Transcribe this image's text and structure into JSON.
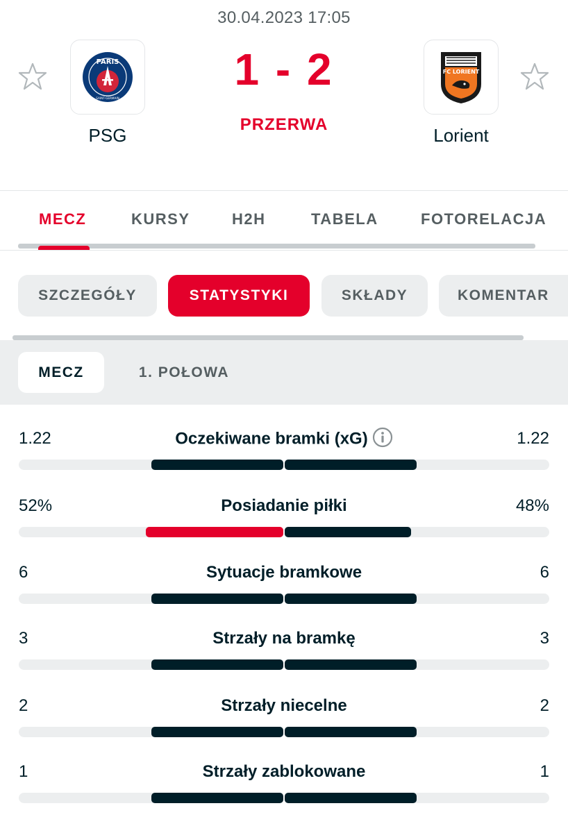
{
  "match": {
    "datetime": "30.04.2023 17:05",
    "home_team": "PSG",
    "away_team": "Lorient",
    "score": "1 - 2",
    "status": "PRZERWA",
    "home_logo_icon": "psg-crest-icon",
    "away_logo_icon": "fc-lorient-crest-icon",
    "home_logo_text": {
      "top": "PARIS",
      "bottom": "SAINT-GERMAIN"
    },
    "away_logo_text": "FC LORIENT"
  },
  "main_tabs": [
    "MECZ",
    "KURSY",
    "H2H",
    "TABELA",
    "FOTORELACJA"
  ],
  "main_tab_active": "MECZ",
  "sub_tabs": [
    "SZCZEGÓŁY",
    "STATYSTYKI",
    "SKŁADY",
    "KOMENTAR"
  ],
  "sub_tab_active": "STATYSTYKI",
  "period_tabs": [
    "MECZ",
    "1. POŁOWA"
  ],
  "period_tab_active": "MECZ",
  "stats": [
    {
      "home": "1.22",
      "label": "Oczekiwane bramki (xG)",
      "away": "1.22",
      "home_share": 0.5,
      "away_share": 0.5,
      "info": true
    },
    {
      "home": "52%",
      "label": "Posiadanie piłki",
      "away": "48%",
      "home_share": 0.52,
      "away_share": 0.48,
      "home_better": true
    },
    {
      "home": "6",
      "label": "Sytuacje bramkowe",
      "away": "6",
      "home_share": 0.5,
      "away_share": 0.5
    },
    {
      "home": "3",
      "label": "Strzały na bramkę",
      "away": "3",
      "home_share": 0.5,
      "away_share": 0.5
    },
    {
      "home": "2",
      "label": "Strzały niecelne",
      "away": "2",
      "home_share": 0.5,
      "away_share": 0.5
    },
    {
      "home": "1",
      "label": "Strzały zablokowane",
      "away": "1",
      "home_share": 0.5,
      "away_share": 0.5
    }
  ],
  "colors": {
    "accent": "#e4002b",
    "dark": "#001e28",
    "muted": "#555e61",
    "pill_bg": "#eceeef"
  }
}
